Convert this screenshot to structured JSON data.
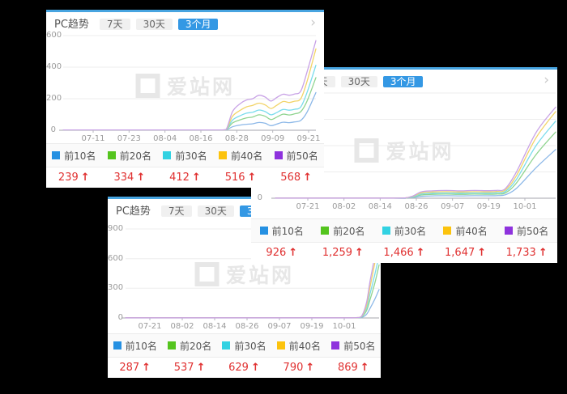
{
  "symbols": {
    "chevron": "›",
    "up_arrow": "↑"
  },
  "colors": {
    "background": "#000000",
    "card_background": "#ffffff",
    "accent_border": "#47a4e0",
    "active_tab": "#3498e4",
    "value_red": "#e03030",
    "watermark_gray": "#e7e7e7"
  },
  "panels": [
    {
      "title": "PC趋势",
      "watermark": "爱站网",
      "tabs": [
        {
          "label": "7天",
          "active": false
        },
        {
          "label": "30天",
          "active": false
        },
        {
          "label": "3个月",
          "active": true
        }
      ]
    },
    {
      "title": "PC趋势",
      "watermark": "爱站网",
      "tabs": [
        {
          "label": "7天",
          "active": false
        },
        {
          "label": "30天",
          "active": false
        },
        {
          "label": "3个月",
          "active": true
        }
      ]
    },
    {
      "title": "PC趋势",
      "watermark": "爱站网",
      "tabs": [
        {
          "label": "7天",
          "active": false
        },
        {
          "label": "30天",
          "active": false
        },
        {
          "label": "3个月",
          "active": true
        }
      ]
    }
  ],
  "chart_data": [
    {
      "type": "line",
      "title": "PC趋势",
      "x_ticks": [
        "07-11",
        "07-23",
        "08-04",
        "08-16",
        "08-28",
        "09-09",
        "09-21"
      ],
      "y_ticks": [
        0,
        200,
        400,
        600
      ],
      "ylim": [
        0,
        600
      ],
      "grid_values": [
        200,
        400,
        600
      ],
      "legend_position": "bottom",
      "xs": [
        0,
        0.58,
        0.62,
        0.645,
        0.67,
        0.7,
        0.725,
        0.75,
        0.775,
        0.8,
        0.822,
        0.845,
        0.87,
        0.895,
        0.915,
        0.94,
        0.965,
        1.0
      ],
      "series": [
        {
          "name": "前10名",
          "swatch": "#2590e2",
          "line": "#8cb8e8",
          "current": 239,
          "current_display": "239",
          "values": [
            1,
            1,
            1,
            2,
            22,
            33,
            38,
            41,
            49,
            44,
            29,
            39,
            51,
            48,
            53,
            62,
            115,
            239
          ]
        },
        {
          "name": "前20名",
          "swatch": "#54c41e",
          "line": "#90d490",
          "current": 334,
          "current_display": "334",
          "values": [
            1,
            1,
            1,
            3,
            46,
            66,
            78,
            84,
            98,
            88,
            68,
            83,
            102,
            97,
            104,
            118,
            185,
            334
          ]
        },
        {
          "name": "前30名",
          "swatch": "#32d2e2",
          "line": "#7adcec",
          "current": 412,
          "current_display": "412",
          "values": [
            1,
            1,
            1,
            3,
            64,
            92,
            108,
            114,
            128,
            118,
            98,
            112,
            132,
            127,
            133,
            148,
            240,
            412
          ]
        },
        {
          "name": "前40名",
          "swatch": "#fcc30d",
          "line": "#f2d468",
          "current": 516,
          "current_display": "516",
          "values": [
            2,
            2,
            2,
            4,
            88,
            126,
            148,
            158,
            172,
            160,
            138,
            158,
            182,
            176,
            184,
            200,
            310,
            516
          ]
        },
        {
          "name": "前50名",
          "swatch": "#8e32dd",
          "line": "#c8a2e6",
          "current": 568,
          "current_display": "568",
          "values": [
            2,
            2,
            2,
            5,
            118,
            168,
            192,
            200,
            222,
            210,
            185,
            207,
            228,
            222,
            230,
            248,
            370,
            568
          ]
        }
      ]
    },
    {
      "type": "line",
      "title": "PC趋势",
      "x_ticks": [
        "07-21",
        "08-02",
        "08-14",
        "08-26",
        "09-07",
        "09-19",
        "10-01"
      ],
      "y_ticks": [
        0
      ],
      "ylim": [
        0,
        2000
      ],
      "grid_values": [
        500,
        1000,
        1500,
        2000
      ],
      "legend_position": "bottom",
      "xs": [
        0,
        0.42,
        0.46,
        0.49,
        0.52,
        0.56,
        0.61,
        0.66,
        0.71,
        0.755,
        0.79,
        0.82,
        0.86,
        0.93,
        1.0
      ],
      "series": [
        {
          "name": "前10名",
          "swatch": "#2590e2",
          "line": "#8cb8e8",
          "current": 926,
          "current_display": "926",
          "values": [
            1,
            1,
            1,
            12,
            35,
            45,
            48,
            45,
            48,
            46,
            50,
            65,
            190,
            580,
            926
          ]
        },
        {
          "name": "前20名",
          "swatch": "#54c41e",
          "line": "#90d490",
          "current": 1259,
          "current_display": "1,259",
          "values": [
            2,
            2,
            2,
            22,
            62,
            74,
            78,
            74,
            78,
            75,
            80,
            100,
            290,
            830,
            1259
          ]
        },
        {
          "name": "前30名",
          "swatch": "#32d2e2",
          "line": "#7adcec",
          "current": 1466,
          "current_display": "1,466",
          "values": [
            2,
            2,
            2,
            28,
            80,
            95,
            100,
            95,
            100,
            97,
            103,
            128,
            360,
            1000,
            1466
          ]
        },
        {
          "name": "前40名",
          "swatch": "#fcc30d",
          "line": "#f2d468",
          "current": 1647,
          "current_display": "1,647",
          "values": [
            3,
            3,
            3,
            35,
            100,
            118,
            124,
            118,
            124,
            120,
            128,
            155,
            430,
            1150,
            1647
          ]
        },
        {
          "name": "前50名",
          "swatch": "#8e32dd",
          "line": "#c8a2e6",
          "current": 1733,
          "current_display": "1,733",
          "values": [
            3,
            3,
            3,
            40,
            120,
            140,
            148,
            140,
            148,
            143,
            150,
            180,
            500,
            1250,
            1733
          ]
        }
      ]
    },
    {
      "type": "line",
      "title": "PC趋势",
      "x_ticks": [
        "07-21",
        "08-02",
        "08-14",
        "08-26",
        "09-07",
        "09-19",
        "10-01"
      ],
      "y_ticks": [
        0,
        300,
        600,
        900
      ],
      "ylim": [
        0,
        900
      ],
      "grid_values": [
        300,
        600,
        900
      ],
      "legend_position": "bottom",
      "xs": [
        0,
        0.82,
        0.88,
        0.91,
        0.93,
        0.95,
        0.965,
        0.985,
        1.0
      ],
      "series": [
        {
          "name": "前10名",
          "swatch": "#2590e2",
          "line": "#8cb8e8",
          "current": 287,
          "current_display": "287",
          "values": [
            1,
            1,
            1,
            1,
            4,
            35,
            100,
            200,
            287
          ]
        },
        {
          "name": "前20名",
          "swatch": "#54c41e",
          "line": "#90d490",
          "current": 537,
          "current_display": "537",
          "values": [
            1,
            1,
            1,
            2,
            8,
            70,
            190,
            370,
            537
          ]
        },
        {
          "name": "前30名",
          "swatch": "#32d2e2",
          "line": "#7adcec",
          "current": 629,
          "current_display": "629",
          "values": [
            1,
            1,
            1,
            2,
            10,
            95,
            250,
            460,
            629
          ]
        },
        {
          "name": "前40名",
          "swatch": "#fcc30d",
          "line": "#f2d468",
          "current": 790,
          "current_display": "790",
          "values": [
            2,
            2,
            2,
            3,
            12,
            120,
            320,
            580,
            790
          ]
        },
        {
          "name": "前50名",
          "swatch": "#8e32dd",
          "line": "#c8a2e6",
          "current": 869,
          "current_display": "869",
          "values": [
            2,
            2,
            2,
            3,
            15,
            150,
            380,
            650,
            869
          ]
        }
      ]
    }
  ]
}
